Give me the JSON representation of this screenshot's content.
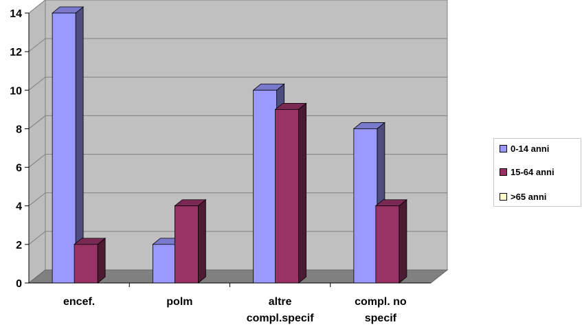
{
  "chart_data": {
    "type": "bar",
    "categories": [
      "encef.",
      "polm",
      "altre compl.specif",
      "compl. no specif"
    ],
    "category_lines": [
      [
        "encef."
      ],
      [
        "polm"
      ],
      [
        "altre",
        "compl.specif"
      ],
      [
        "compl. no",
        "specif"
      ]
    ],
    "series": [
      {
        "name": "0-14 anni",
        "values": [
          14,
          2,
          10,
          8
        ],
        "color": "#9999ff"
      },
      {
        "name": "15-64 anni",
        "values": [
          2,
          4,
          9,
          4
        ],
        "color": "#993366"
      },
      {
        "name": ">65 anni",
        "values": [
          0,
          0,
          0,
          0
        ],
        "color": "#ffffcc"
      }
    ],
    "ylim": [
      0,
      14
    ],
    "yticks": [
      0,
      2,
      4,
      6,
      8,
      10,
      12,
      14
    ],
    "grid": true,
    "legend_position": "right",
    "style": "3d-clustered-column",
    "colors": {
      "plot_back": "#c0c0c0",
      "floor": "#808080",
      "grid": "#808080"
    }
  }
}
